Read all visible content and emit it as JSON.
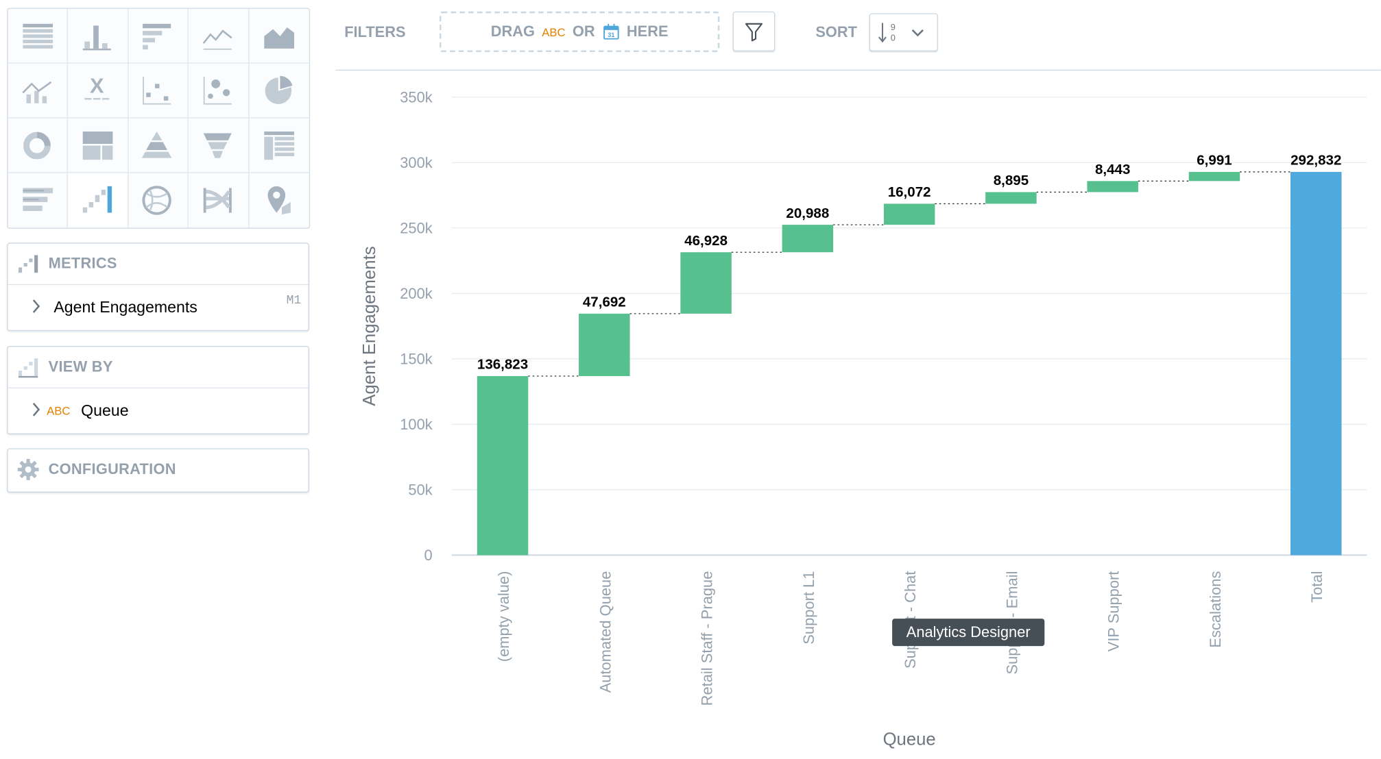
{
  "sidebar": {
    "visualizations": [
      "table-icon",
      "column-chart-icon",
      "bar-chart-icon",
      "line-chart-icon",
      "area-chart-icon",
      "combo-chart-icon",
      "headline-icon",
      "scatter-plot-icon",
      "bubble-chart-icon",
      "pie-chart-icon",
      "donut-chart-icon",
      "treemap-icon",
      "pyramid-chart-icon",
      "funnel-chart-icon",
      "pivot-table-icon",
      "bullet-chart-icon",
      "waterfall-chart-icon",
      "dependency-wheel-icon",
      "sankey-chart-icon",
      "geo-pushpin-icon"
    ],
    "metrics": {
      "title": "METRICS",
      "item": "Agent Engagements",
      "item_tag": "M1"
    },
    "view_by": {
      "title": "VIEW BY",
      "item_tag": "ABC",
      "item": "Queue"
    },
    "configuration": {
      "title": "CONFIGURATION"
    }
  },
  "toolbar": {
    "filters_label": "FILTERS",
    "drop_drag": "DRAG",
    "drop_abc": "ABC",
    "drop_or": "OR",
    "drop_here": "HERE",
    "sort_label": "SORT"
  },
  "tooltip": {
    "text": "Analytics Designer"
  },
  "colors": {
    "positive": "#56c08e",
    "total": "#50a9dc"
  },
  "chart_data": {
    "type": "bar",
    "subtype": "waterfall",
    "categories": [
      "(empty value)",
      "Automated Queue",
      "Retail Staff - Prague",
      "Support L1",
      "Support - Chat",
      "Support - Email",
      "VIP Support",
      "Escalations",
      "Total"
    ],
    "category_labels_visible": [
      "(empty value)",
      "Automated Queue",
      "Retail Staff - Prague",
      "Support L1",
      "Suppor",
      "- Chat",
      "Support",
      "- Email",
      "VIP Support",
      "Escalations",
      "Total"
    ],
    "values": [
      136823,
      47692,
      46928,
      20988,
      16072,
      8895,
      8443,
      6991,
      292832
    ],
    "data_labels": [
      "136,823",
      "47,692",
      "46,928",
      "20,988",
      "16,072",
      "8,895",
      "8,443",
      "6,991",
      "292,832"
    ],
    "is_total": [
      false,
      false,
      false,
      false,
      false,
      false,
      false,
      false,
      true
    ],
    "xlabel": "Queue",
    "ylabel": "Agent Engagements",
    "ylim": [
      0,
      350000
    ],
    "yticks": [
      0,
      50000,
      100000,
      150000,
      200000,
      250000,
      300000,
      350000
    ],
    "ytick_labels": [
      "0",
      "50k",
      "100k",
      "150k",
      "200k",
      "250k",
      "300k",
      "350k"
    ],
    "grid": true,
    "legend": "none"
  }
}
